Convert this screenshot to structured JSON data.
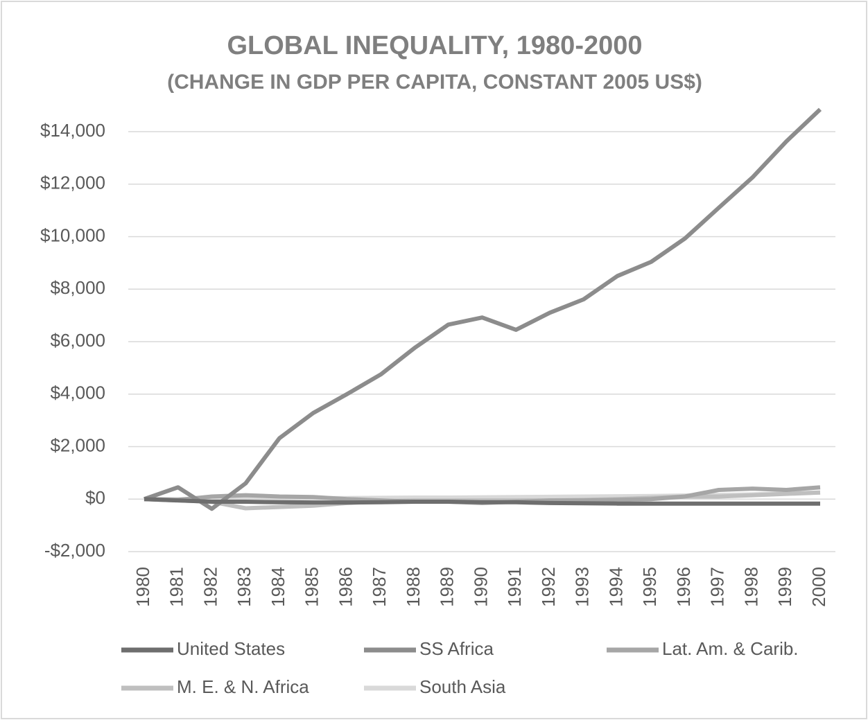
{
  "chart_data": {
    "type": "line",
    "title": "GLOBAL INEQUALITY, 1980-2000",
    "subtitle": "(CHANGE IN GDP PER CAPITA, CONSTANT 2005 US$)",
    "categories": [
      "1980",
      "1981",
      "1982",
      "1983",
      "1984",
      "1985",
      "1986",
      "1987",
      "1988",
      "1989",
      "1990",
      "1991",
      "1992",
      "1993",
      "1994",
      "1995",
      "1996",
      "1997",
      "1998",
      "1999",
      "2000"
    ],
    "series": [
      {
        "name": "United States",
        "color": "#6e6e6e",
        "values": [
          0,
          -50,
          -100,
          -100,
          -120,
          -130,
          -130,
          -120,
          -100,
          -100,
          -120,
          -120,
          -150,
          -160,
          -170,
          -170,
          -170,
          -170,
          -170,
          -170,
          -170
        ]
      },
      {
        "name": "SS Africa",
        "color": "#8c8c8c",
        "values": [
          0,
          450,
          -370,
          600,
          2320,
          3280,
          4000,
          4750,
          5760,
          6650,
          6920,
          6450,
          7100,
          7610,
          8500,
          9040,
          9930,
          11100,
          12260,
          13630,
          14850
        ]
      },
      {
        "name": "Lat. Am. & Carib.",
        "color": "#a6a6a6",
        "values": [
          0,
          -30,
          100,
          150,
          100,
          80,
          0,
          -50,
          -100,
          -100,
          -150,
          -100,
          -50,
          -50,
          -30,
          0,
          100,
          350,
          400,
          350,
          450
        ]
      },
      {
        "name": "M. E. & N. Africa",
        "color": "#bfbfbf",
        "values": [
          0,
          -50,
          -100,
          -350,
          -300,
          -250,
          -150,
          -80,
          -50,
          -50,
          -50,
          -50,
          -50,
          -30,
          0,
          50,
          100,
          100,
          150,
          200,
          250
        ]
      },
      {
        "name": "South Asia",
        "color": "#d9d9d9",
        "values": [
          0,
          0,
          20,
          30,
          30,
          40,
          40,
          50,
          60,
          60,
          70,
          80,
          90,
          100,
          110,
          120,
          140,
          160,
          180,
          220,
          250
        ]
      }
    ],
    "ylim": [
      -2000,
      14000
    ],
    "yticks": [
      {
        "value": -2000,
        "label": "-$2,000"
      },
      {
        "value": 0,
        "label": "$0"
      },
      {
        "value": 2000,
        "label": "$2,000"
      },
      {
        "value": 4000,
        "label": "$4,000"
      },
      {
        "value": 6000,
        "label": "$6,000"
      },
      {
        "value": 8000,
        "label": "$8,000"
      },
      {
        "value": 10000,
        "label": "$10,000"
      },
      {
        "value": 12000,
        "label": "$12,000"
      },
      {
        "value": 14000,
        "label": "$14,000"
      }
    ],
    "grid": true,
    "legend": "bottom"
  }
}
